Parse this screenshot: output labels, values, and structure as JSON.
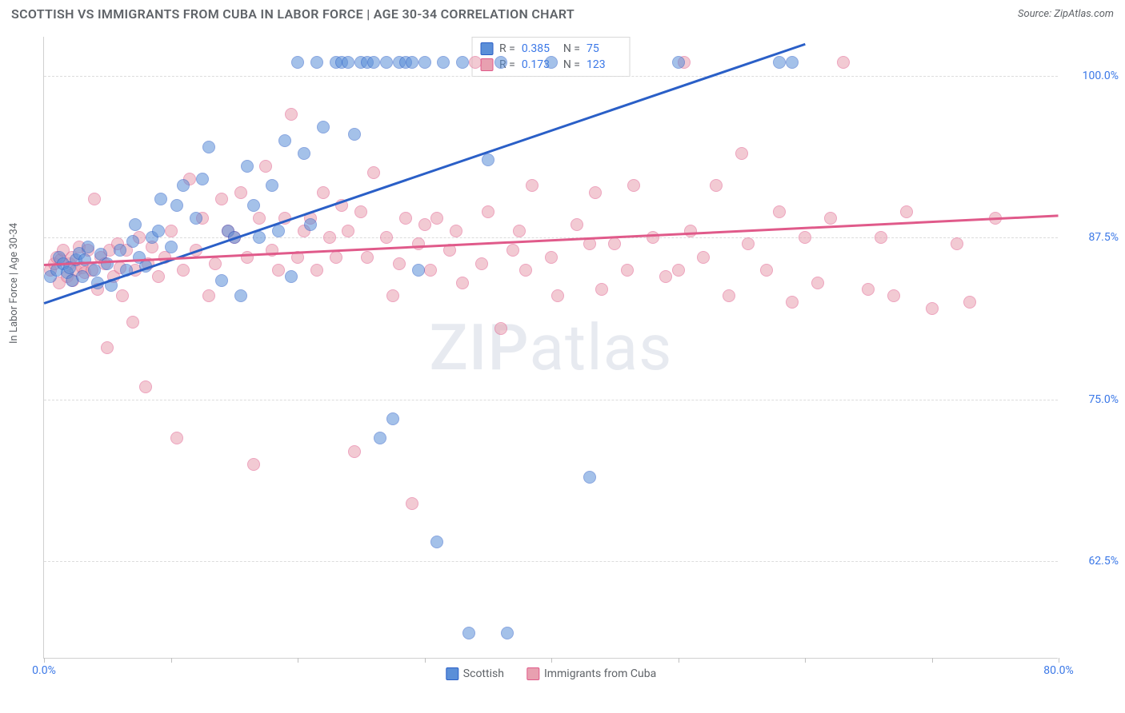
{
  "title": "SCOTTISH VS IMMIGRANTS FROM CUBA IN LABOR FORCE | AGE 30-34 CORRELATION CHART",
  "source": "Source: ZipAtlas.com",
  "watermark_zip": "ZIP",
  "watermark_atlas": "atlas",
  "chart": {
    "type": "scatter",
    "background_color": "#ffffff",
    "grid_color": "#dcdcdc",
    "border_color": "#d0d0d0",
    "y_axis_label": "In Labor Force | Age 30-34",
    "label_fontsize": 13,
    "label_color": "#5f6368",
    "tick_color": "#3b78e7",
    "tick_fontsize": 14,
    "xlim": [
      0,
      80
    ],
    "ylim": [
      55,
      103
    ],
    "x_ticks": [
      0,
      10,
      20,
      30,
      40,
      50,
      60,
      70,
      80
    ],
    "x_tick_labels": {
      "0": "0.0%",
      "80": "80.0%"
    },
    "y_ticks": [
      62.5,
      75.0,
      87.5,
      100.0
    ],
    "y_tick_labels": [
      "62.5%",
      "75.0%",
      "87.5%",
      "100.0%"
    ],
    "marker_radius": 8,
    "marker_opacity": 0.55,
    "line_width": 2.5,
    "series": [
      {
        "name": "Scottish",
        "color": "#5b8fd8",
        "line_color": "#2a5fc7",
        "R": "0.385",
        "N": "75",
        "trend": {
          "x1": 0,
          "y1": 82.5,
          "x2": 60,
          "y2": 102.5
        },
        "points": [
          [
            0.5,
            84.5
          ],
          [
            1,
            85
          ],
          [
            1.2,
            86
          ],
          [
            1.5,
            85.5
          ],
          [
            1.8,
            84.8
          ],
          [
            2,
            85.2
          ],
          [
            2.2,
            84.2
          ],
          [
            2.5,
            85.8
          ],
          [
            2.8,
            86.3
          ],
          [
            3,
            84.5
          ],
          [
            3.2,
            85.8
          ],
          [
            3.5,
            86.8
          ],
          [
            4,
            85
          ],
          [
            4.2,
            84
          ],
          [
            4.5,
            86.2
          ],
          [
            5,
            85.5
          ],
          [
            5.3,
            83.8
          ],
          [
            6,
            86.5
          ],
          [
            6.5,
            85
          ],
          [
            7,
            87.2
          ],
          [
            7.2,
            88.5
          ],
          [
            7.5,
            86
          ],
          [
            8,
            85.3
          ],
          [
            8.5,
            87.5
          ],
          [
            9,
            88
          ],
          [
            9.2,
            90.5
          ],
          [
            10,
            86.8
          ],
          [
            10.5,
            90
          ],
          [
            11,
            91.5
          ],
          [
            12,
            89
          ],
          [
            12.5,
            92
          ],
          [
            13,
            94.5
          ],
          [
            14,
            84.2
          ],
          [
            14.5,
            88
          ],
          [
            15,
            87.5
          ],
          [
            15.5,
            83
          ],
          [
            16,
            93
          ],
          [
            16.5,
            90
          ],
          [
            17,
            87.5
          ],
          [
            18,
            91.5
          ],
          [
            18.5,
            88
          ],
          [
            19,
            95
          ],
          [
            19.5,
            84.5
          ],
          [
            20,
            101
          ],
          [
            20.5,
            94
          ],
          [
            21,
            88.5
          ],
          [
            21.5,
            101
          ],
          [
            22,
            96
          ],
          [
            23,
            101
          ],
          [
            23.5,
            101
          ],
          [
            24,
            101
          ],
          [
            24.5,
            95.5
          ],
          [
            25,
            101
          ],
          [
            25.5,
            101
          ],
          [
            26,
            101
          ],
          [
            26.5,
            72
          ],
          [
            27,
            101
          ],
          [
            27.5,
            73.5
          ],
          [
            28,
            101
          ],
          [
            28.5,
            101
          ],
          [
            29,
            101
          ],
          [
            29.5,
            85
          ],
          [
            30,
            101
          ],
          [
            31,
            64
          ],
          [
            31.5,
            101
          ],
          [
            33,
            101
          ],
          [
            33.5,
            57
          ],
          [
            35,
            93.5
          ],
          [
            36,
            101
          ],
          [
            36.5,
            57
          ],
          [
            40,
            101
          ],
          [
            43,
            69
          ],
          [
            50,
            101
          ],
          [
            58,
            101
          ],
          [
            59,
            101
          ]
        ]
      },
      {
        "name": "Immigrants from Cuba",
        "color": "#e8a0b0",
        "line_color": "#e05a8a",
        "R": "0.173",
        "N": "123",
        "trend": {
          "x1": 0,
          "y1": 85.5,
          "x2": 80,
          "y2": 89.3
        },
        "points": [
          [
            0.5,
            85
          ],
          [
            0.8,
            85.5
          ],
          [
            1,
            86
          ],
          [
            1.2,
            84
          ],
          [
            1.3,
            85.8
          ],
          [
            1.5,
            86.5
          ],
          [
            1.8,
            84.5
          ],
          [
            2,
            85.5
          ],
          [
            2.2,
            86
          ],
          [
            2.3,
            84.2
          ],
          [
            2.5,
            85
          ],
          [
            2.8,
            86.8
          ],
          [
            3,
            85.2
          ],
          [
            3.2,
            84.8
          ],
          [
            3.5,
            86.5
          ],
          [
            3.8,
            85
          ],
          [
            4,
            90.5
          ],
          [
            4.2,
            83.5
          ],
          [
            4.5,
            86
          ],
          [
            4.8,
            85.5
          ],
          [
            5,
            79
          ],
          [
            5.2,
            86.5
          ],
          [
            5.5,
            84.5
          ],
          [
            5.8,
            87
          ],
          [
            6,
            85.2
          ],
          [
            6.2,
            83
          ],
          [
            6.5,
            86.5
          ],
          [
            7,
            81
          ],
          [
            7.2,
            85
          ],
          [
            7.5,
            87.5
          ],
          [
            8,
            76
          ],
          [
            8.2,
            85.5
          ],
          [
            8.5,
            86.8
          ],
          [
            9,
            84.5
          ],
          [
            9.5,
            86
          ],
          [
            10,
            88
          ],
          [
            10.5,
            72
          ],
          [
            11,
            85
          ],
          [
            11.5,
            92
          ],
          [
            12,
            86.5
          ],
          [
            12.5,
            89
          ],
          [
            13,
            83
          ],
          [
            13.5,
            85.5
          ],
          [
            14,
            90.5
          ],
          [
            14.5,
            88
          ],
          [
            15,
            87.5
          ],
          [
            15.5,
            91
          ],
          [
            16,
            86
          ],
          [
            16.5,
            70
          ],
          [
            17,
            89
          ],
          [
            17.5,
            93
          ],
          [
            18,
            86.5
          ],
          [
            18.5,
            85
          ],
          [
            19,
            89
          ],
          [
            19.5,
            97
          ],
          [
            20,
            86
          ],
          [
            20.5,
            88
          ],
          [
            21,
            89
          ],
          [
            21.5,
            85
          ],
          [
            22,
            91
          ],
          [
            22.5,
            87.5
          ],
          [
            23,
            86
          ],
          [
            23.5,
            90
          ],
          [
            24,
            88
          ],
          [
            24.5,
            71
          ],
          [
            25,
            89.5
          ],
          [
            25.5,
            86
          ],
          [
            26,
            92.5
          ],
          [
            27,
            87.5
          ],
          [
            27.5,
            83
          ],
          [
            28,
            85.5
          ],
          [
            28.5,
            89
          ],
          [
            29,
            67
          ],
          [
            29.5,
            87
          ],
          [
            30,
            88.5
          ],
          [
            30.5,
            85
          ],
          [
            31,
            89
          ],
          [
            32,
            86.5
          ],
          [
            32.5,
            88
          ],
          [
            33,
            84
          ],
          [
            34,
            101
          ],
          [
            34.5,
            85.5
          ],
          [
            35,
            89.5
          ],
          [
            36,
            80.5
          ],
          [
            37,
            86.5
          ],
          [
            37.5,
            88
          ],
          [
            38,
            85
          ],
          [
            38.5,
            91.5
          ],
          [
            40,
            86
          ],
          [
            40.5,
            83
          ],
          [
            42,
            88.5
          ],
          [
            43,
            87
          ],
          [
            43.5,
            91
          ],
          [
            44,
            83.5
          ],
          [
            45,
            87
          ],
          [
            46,
            85
          ],
          [
            46.5,
            91.5
          ],
          [
            48,
            87.5
          ],
          [
            49,
            84.5
          ],
          [
            50,
            85
          ],
          [
            50.5,
            101
          ],
          [
            51,
            88
          ],
          [
            52,
            86
          ],
          [
            53,
            91.5
          ],
          [
            54,
            83
          ],
          [
            55,
            94
          ],
          [
            55.5,
            87
          ],
          [
            57,
            85
          ],
          [
            58,
            89.5
          ],
          [
            59,
            82.5
          ],
          [
            60,
            87.5
          ],
          [
            61,
            84
          ],
          [
            62,
            89
          ],
          [
            63,
            101
          ],
          [
            65,
            83.5
          ],
          [
            66,
            87.5
          ],
          [
            67,
            83
          ],
          [
            68,
            89.5
          ],
          [
            70,
            82
          ],
          [
            72,
            87
          ],
          [
            73,
            82.5
          ],
          [
            75,
            89
          ]
        ]
      }
    ]
  },
  "legend_bottom": {
    "items": [
      "Scottish",
      "Immigrants from Cuba"
    ]
  }
}
